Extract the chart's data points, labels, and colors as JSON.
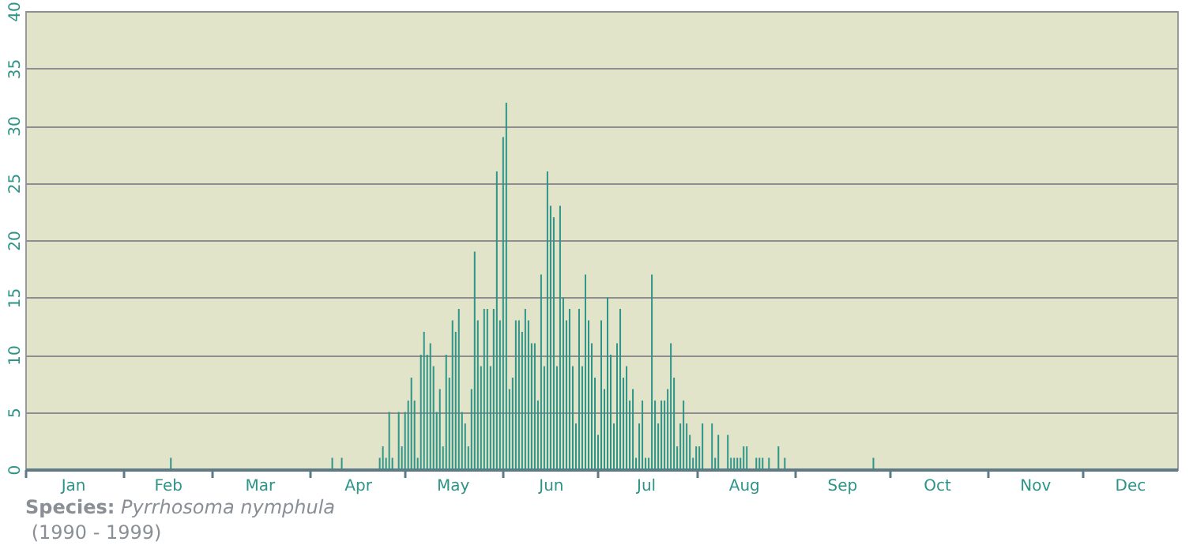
{
  "chart_data": {
    "type": "bar",
    "x": [
      "--02-16",
      "--04-08",
      "--04-11",
      "--04-23",
      "--04-24",
      "--04-25",
      "--04-26",
      "--04-27",
      "--04-29",
      "--04-30",
      "--05-01",
      "--05-02",
      "--05-03",
      "--05-04",
      "--05-05",
      "--05-06",
      "--05-07",
      "--05-08",
      "--05-09",
      "--05-10",
      "--05-11",
      "--05-12",
      "--05-13",
      "--05-14",
      "--05-15",
      "--05-16",
      "--05-17",
      "--05-18",
      "--05-19",
      "--05-20",
      "--05-21",
      "--05-22",
      "--05-23",
      "--05-24",
      "--05-25",
      "--05-26",
      "--05-27",
      "--05-28",
      "--05-29",
      "--05-30",
      "--05-31",
      "--06-01",
      "--06-02",
      "--06-03",
      "--06-04",
      "--06-05",
      "--06-06",
      "--06-07",
      "--06-08",
      "--06-09",
      "--06-10",
      "--06-11",
      "--06-12",
      "--06-13",
      "--06-14",
      "--06-15",
      "--06-16",
      "--06-17",
      "--06-18",
      "--06-19",
      "--06-20",
      "--06-21",
      "--06-22",
      "--06-23",
      "--06-24",
      "--06-25",
      "--06-26",
      "--06-27",
      "--06-28",
      "--06-29",
      "--06-30",
      "--07-01",
      "--07-02",
      "--07-03",
      "--07-04",
      "--07-05",
      "--07-06",
      "--07-07",
      "--07-08",
      "--07-09",
      "--07-10",
      "--07-11",
      "--07-12",
      "--07-13",
      "--07-14",
      "--07-15",
      "--07-16",
      "--07-17",
      "--07-18",
      "--07-19",
      "--07-20",
      "--07-21",
      "--07-22",
      "--07-23",
      "--07-24",
      "--07-25",
      "--07-26",
      "--07-27",
      "--07-28",
      "--07-29",
      "--07-30",
      "--07-31",
      "--08-01",
      "--08-02",
      "--08-03",
      "--08-06",
      "--08-07",
      "--08-08",
      "--08-11",
      "--08-12",
      "--08-13",
      "--08-14",
      "--08-15",
      "--08-16",
      "--08-17",
      "--08-20",
      "--08-21",
      "--08-22",
      "--08-24",
      "--08-27",
      "--08-29",
      "--09-26"
    ],
    "values": [
      1,
      1,
      1,
      1,
      2,
      1,
      5,
      1,
      5,
      2,
      5,
      6,
      8,
      6,
      1,
      10,
      12,
      10,
      11,
      9,
      5,
      7,
      2,
      10,
      8,
      13,
      12,
      14,
      5,
      4,
      2,
      7,
      19,
      13,
      9,
      14,
      14,
      9,
      14,
      26,
      13,
      29,
      32,
      7,
      8,
      13,
      13,
      12,
      14,
      13,
      11,
      11,
      6,
      17,
      9,
      26,
      23,
      22,
      9,
      23,
      15,
      13,
      14,
      9,
      4,
      14,
      9,
      17,
      13,
      11,
      8,
      3,
      13,
      7,
      15,
      10,
      4,
      11,
      14,
      8,
      9,
      6,
      7,
      1,
      4,
      6,
      1,
      1,
      17,
      6,
      4,
      6,
      6,
      7,
      11,
      8,
      2,
      4,
      6,
      4,
      3,
      1,
      2,
      2,
      4,
      4,
      1,
      3,
      3,
      1,
      1,
      1,
      1,
      2,
      2,
      1,
      1,
      1,
      1,
      2,
      1,
      1
    ],
    "color": "#2e9488",
    "xlim": [
      "--01-01",
      "--12-31"
    ],
    "xticks": [
      {
        "value": "--01-01",
        "label": null
      },
      {
        "value": "--01-16",
        "label": "Jan"
      },
      {
        "value": "--02-01",
        "label": null
      },
      {
        "value": "--02-15",
        "label": "Feb"
      },
      {
        "value": "--03-01",
        "label": null
      },
      {
        "value": "--03-16",
        "label": "Mar"
      },
      {
        "value": "--04-01",
        "label": null
      },
      {
        "value": "--04-16",
        "label": "Apr"
      },
      {
        "value": "--05-01",
        "label": null
      },
      {
        "value": "--05-16",
        "label": "May"
      },
      {
        "value": "--06-01",
        "label": null
      },
      {
        "value": "--06-16",
        "label": "Jun"
      },
      {
        "value": "--07-01",
        "label": null
      },
      {
        "value": "--07-16",
        "label": "Jul"
      },
      {
        "value": "--08-01",
        "label": null
      },
      {
        "value": "--08-16",
        "label": "Aug"
      },
      {
        "value": "--09-01",
        "label": null
      },
      {
        "value": "--09-16",
        "label": "Sep"
      },
      {
        "value": "--10-01",
        "label": null
      },
      {
        "value": "--10-16",
        "label": "Oct"
      },
      {
        "value": "--11-01",
        "label": null
      },
      {
        "value": "--11-16",
        "label": "Nov"
      },
      {
        "value": "--12-01",
        "label": null
      },
      {
        "value": "--12-16",
        "label": "Dec"
      }
    ],
    "ylim": [
      0,
      40
    ],
    "yticks": [
      0,
      5,
      10,
      15,
      20,
      25,
      30,
      35,
      40
    ],
    "grid": "y",
    "annotations": [
      "Species: Pyrrhosoma nymphula",
      "(1990 - 1999)"
    ]
  }
}
